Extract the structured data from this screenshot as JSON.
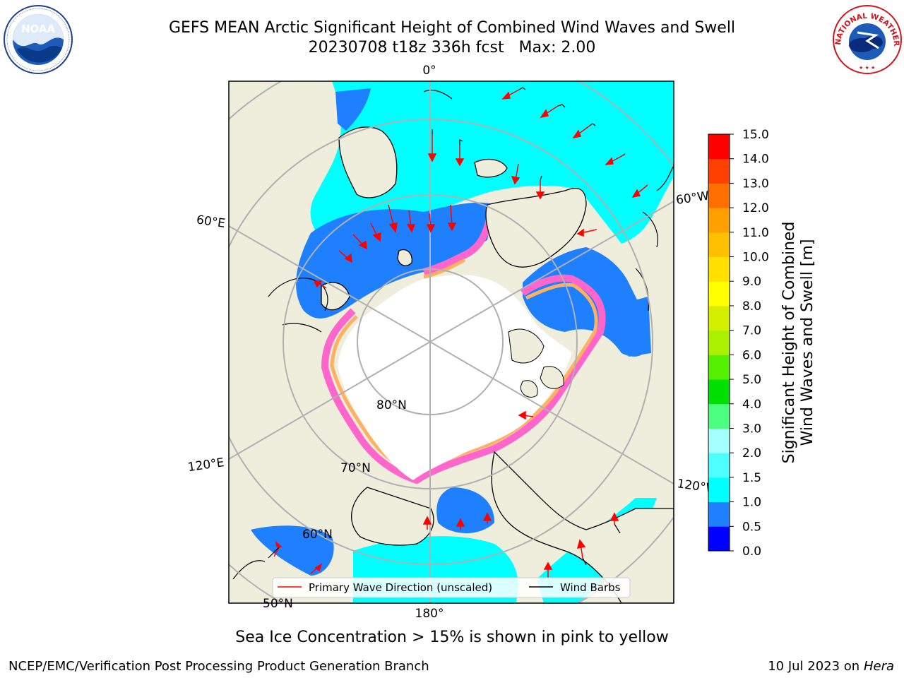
{
  "header": {
    "title_line1": "GEFS MEAN Arctic Significant Height of Combined Wind Waves and Swell",
    "title_line2": "20230708 t18z 336h fcst   Max: 2.00"
  },
  "logos": {
    "left": "NOAA",
    "right_text": "NATIONAL WEATHER SERVICE"
  },
  "map": {
    "projection": "north polar stereographic",
    "lon_labels": [
      "0°",
      "60°W",
      "120°W",
      "180°",
      "120°E",
      "60°E"
    ],
    "lat_labels": [
      "80°N",
      "70°N",
      "60°N",
      "50°N"
    ],
    "legend": {
      "wave_direction": "Primary Wave Direction (unscaled)",
      "wind_barbs": "Wind Barbs"
    },
    "colors": {
      "land": "#efeedc",
      "ice": "#ffffff",
      "graticule": "#b0b0b0",
      "wave_arrow": "#ff0000"
    }
  },
  "colorbar": {
    "label_line1": "Significant Height of Combined",
    "label_line2": "Wind Waves and Swell [m]",
    "ticks": [
      "0.0",
      "0.5",
      "1.0",
      "1.5",
      "2.0",
      "3.0",
      "4.0",
      "5.0",
      "6.0",
      "7.0",
      "8.0",
      "9.0",
      "10.0",
      "11.0",
      "12.0",
      "13.0",
      "14.0",
      "15.0"
    ],
    "colors": [
      "#0000ff",
      "#1e7fff",
      "#00ffff",
      "#4dffff",
      "#a6ffff",
      "#4dff80",
      "#00e000",
      "#55f000",
      "#aaf000",
      "#d4f000",
      "#ffff00",
      "#ffe000",
      "#ffc000",
      "#ffa000",
      "#ff7000",
      "#ff4000",
      "#ff0000"
    ]
  },
  "footer": {
    "sea_ice_note": "Sea Ice Concentration > 15% is shown in pink to yellow",
    "credit": "NCEP/EMC/Verification Post Processing Product Generation Branch",
    "date": "10 Jul 2023 on ",
    "host": "Hera"
  }
}
